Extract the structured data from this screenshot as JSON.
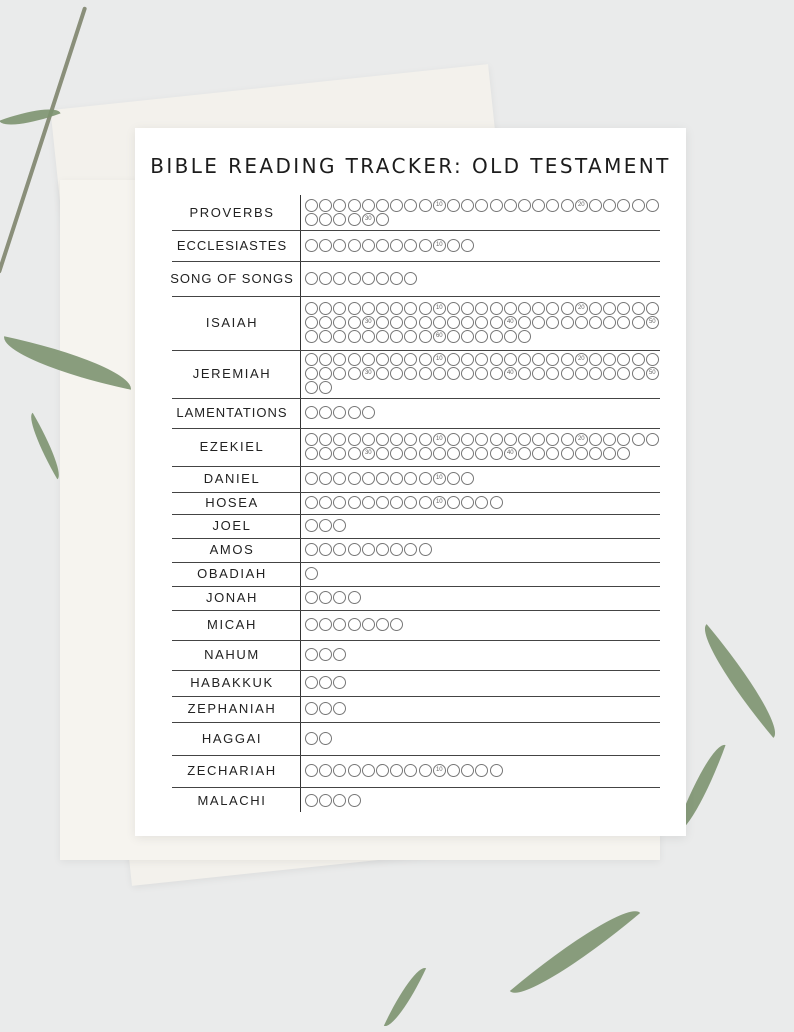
{
  "title": "BIBLE READING TRACKER: OLD TESTAMENT",
  "books": [
    {
      "name": "PROVERBS",
      "chapters": 31
    },
    {
      "name": "ECCLESIASTES",
      "chapters": 12
    },
    {
      "name": "SONG OF SONGS",
      "chapters": 8
    },
    {
      "name": "ISAIAH",
      "chapters": 66
    },
    {
      "name": "JEREMIAH",
      "chapters": 52
    },
    {
      "name": "LAMENTATIONS",
      "chapters": 5
    },
    {
      "name": "EZEKIEL",
      "chapters": 48
    },
    {
      "name": "DANIEL",
      "chapters": 12
    },
    {
      "name": "HOSEA",
      "chapters": 14
    },
    {
      "name": "JOEL",
      "chapters": 3
    },
    {
      "name": "AMOS",
      "chapters": 9
    },
    {
      "name": "OBADIAH",
      "chapters": 1
    },
    {
      "name": "JONAH",
      "chapters": 4
    },
    {
      "name": "MICAH",
      "chapters": 7
    },
    {
      "name": "NAHUM",
      "chapters": 3
    },
    {
      "name": "HABAKKUK",
      "chapters": 3
    },
    {
      "name": "ZEPHANIAH",
      "chapters": 3
    },
    {
      "name": "HAGGAI",
      "chapters": 2
    },
    {
      "name": "ZECHARIAH",
      "chapters": 14
    },
    {
      "name": "MALACHI",
      "chapters": 4
    }
  ]
}
